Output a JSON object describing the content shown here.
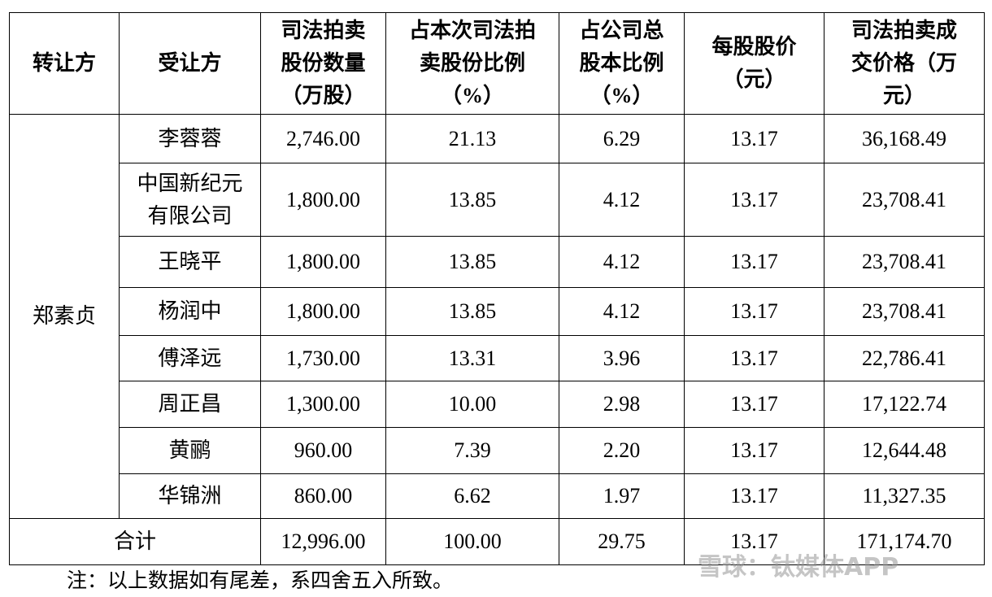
{
  "table": {
    "header": [
      [
        "转让方"
      ],
      [
        "受让方"
      ],
      [
        "司法拍卖",
        "股份数量",
        "（万股）"
      ],
      [
        "占本次司法拍",
        "卖股份比例",
        "（%）"
      ],
      [
        "占公司总",
        "股本比例",
        "（%）"
      ],
      [
        "每股股价",
        "（元）"
      ],
      [
        "司法拍卖成",
        "交价格（万",
        "元）"
      ]
    ],
    "transferor": "郑素贞",
    "rows": [
      [
        "李蓉蓉",
        "2,746.00",
        "21.13",
        "6.29",
        "13.17",
        "36,168.49"
      ],
      [
        "中国新纪元有限公司",
        "1,800.00",
        "13.85",
        "4.12",
        "13.17",
        "23,708.41"
      ],
      [
        "王晓平",
        "1,800.00",
        "13.85",
        "4.12",
        "13.17",
        "23,708.41"
      ],
      [
        "杨润中",
        "1,800.00",
        "13.85",
        "4.12",
        "13.17",
        "23,708.41"
      ],
      [
        "傅泽远",
        "1,730.00",
        "13.31",
        "3.96",
        "13.17",
        "22,786.41"
      ],
      [
        "周正昌",
        "1,300.00",
        "10.00",
        "2.98",
        "13.17",
        "17,122.74"
      ],
      [
        "黄鹂",
        "960.00",
        "7.39",
        "2.20",
        "13.17",
        "12,644.48"
      ],
      [
        "华锦洲",
        "860.00",
        "6.62",
        "1.97",
        "13.17",
        "11,327.35"
      ]
    ],
    "total": {
      "label": "合计",
      "values": [
        "12,996.00",
        "100.00",
        "29.75",
        "13.17",
        "171,174.70"
      ]
    }
  },
  "note": "注：以上数据如有尾差，系四舍五入所致。",
  "watermark": "雪球：钛媒体APP"
}
